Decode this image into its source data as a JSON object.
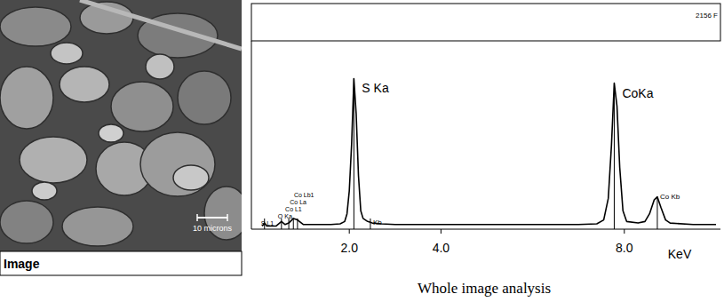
{
  "image_panel": {
    "label": "Image",
    "scale_bar": "10 microns"
  },
  "chart_data": {
    "type": "line",
    "header": "2156 F",
    "caption": "Whole image analysis",
    "x_label": "KeV",
    "x": [
      0.1,
      0.15,
      0.2,
      0.4,
      0.52,
      0.6,
      0.68,
      0.78,
      0.87,
      1.0,
      1.3,
      1.6,
      1.8,
      1.9,
      1.95,
      2.0,
      2.05,
      2.1,
      2.15,
      2.2,
      2.25,
      2.3,
      2.4,
      2.5,
      2.7,
      3.0,
      4.0,
      5.0,
      6.0,
      7.0,
      7.4,
      7.55,
      7.65,
      7.72,
      7.78,
      7.84,
      7.9,
      7.97,
      8.05,
      8.3,
      8.45,
      8.55,
      8.65,
      8.72,
      8.8,
      8.9,
      9.0,
      9.5,
      10.0
    ],
    "values": [
      2,
      4,
      2,
      2,
      5,
      3,
      4,
      7,
      6,
      3,
      3,
      3,
      3.5,
      5,
      10,
      25,
      55,
      98,
      75,
      35,
      12,
      7,
      5,
      4,
      3.5,
      3,
      3,
      3,
      3,
      3,
      3.5,
      6,
      20,
      55,
      95,
      80,
      40,
      12,
      5,
      4,
      5,
      10,
      19,
      21,
      14,
      6,
      4,
      3,
      3
    ],
    "color": "#000000",
    "xlim": [
      0,
      10
    ],
    "ylim": [
      0,
      100
    ],
    "xticks": [
      {
        "value": 2,
        "label": "2.0"
      },
      {
        "value": 4,
        "label": "4.0"
      },
      {
        "value": 8,
        "label": "8.0"
      }
    ],
    "tick_labels": "x",
    "annotations": [
      {
        "text": "S L1",
        "x": 0.15
      },
      {
        "text": "O Ka",
        "x": 0.52
      },
      {
        "text": "Co L1",
        "x": 0.68
      },
      {
        "text": "Co La",
        "x": 0.78
      },
      {
        "text": "Co Lb1",
        "x": 0.87
      },
      {
        "text": "S Ka",
        "x": 2.1
      },
      {
        "text": "Kb",
        "x": 2.46
      },
      {
        "text": "CoKa",
        "x": 7.78
      },
      {
        "text": "Co Kb",
        "x": 8.72
      }
    ]
  }
}
